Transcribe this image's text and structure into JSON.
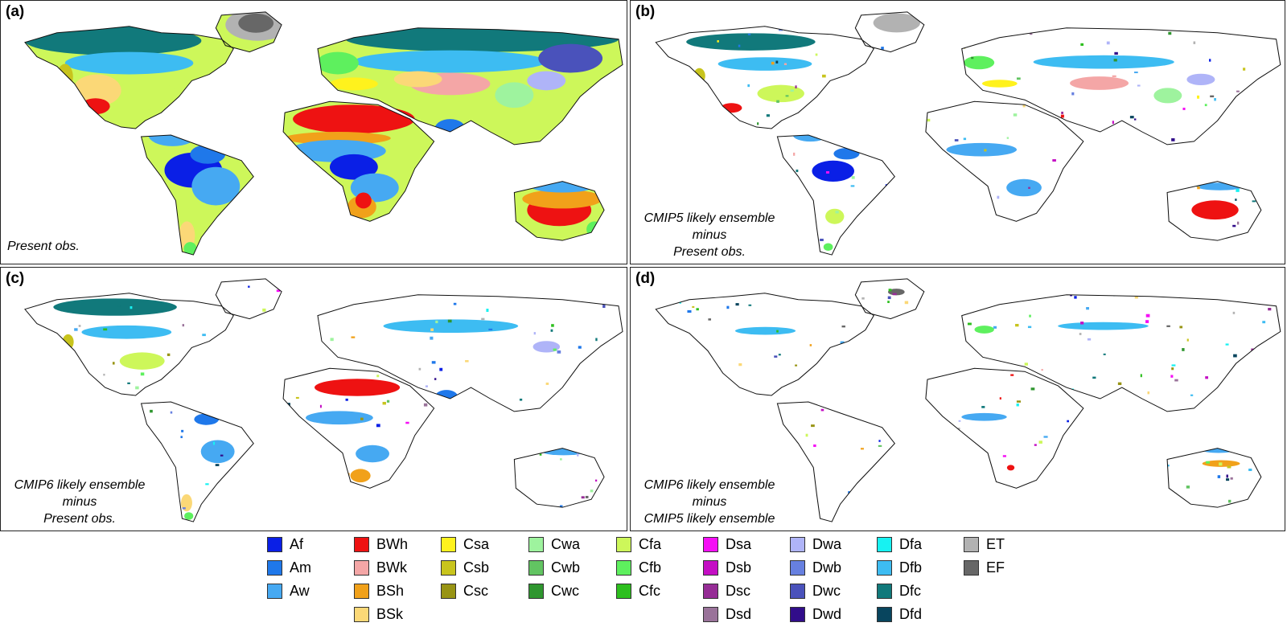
{
  "panels": [
    {
      "id": "a",
      "label": "(a)",
      "caption": [
        "Present obs."
      ],
      "mode": "full"
    },
    {
      "id": "b",
      "label": "(b)",
      "caption": [
        "CMIP5 likely ensemble",
        "minus",
        "Present obs."
      ],
      "mode": "diff"
    },
    {
      "id": "c",
      "label": "(c)",
      "caption": [
        "CMIP6 likely ensemble",
        "minus",
        "Present obs."
      ],
      "mode": "diff"
    },
    {
      "id": "d",
      "label": "(d)",
      "caption": [
        "CMIP6 likely ensemble",
        "minus",
        "CMIP5 likely ensemble"
      ],
      "mode": "sparse"
    }
  ],
  "legend": [
    [
      {
        "code": "Af",
        "color": "#0a1fe6"
      },
      {
        "code": "Am",
        "color": "#1f78ea"
      },
      {
        "code": "Aw",
        "color": "#46a9f2"
      }
    ],
    [
      {
        "code": "BWh",
        "color": "#ee1212"
      },
      {
        "code": "BWk",
        "color": "#f4a6a6"
      },
      {
        "code": "BSh",
        "color": "#f1a11a"
      },
      {
        "code": "BSk",
        "color": "#fbd877"
      }
    ],
    [
      {
        "code": "Csa",
        "color": "#fff21d"
      },
      {
        "code": "Csb",
        "color": "#c8c41d"
      },
      {
        "code": "Csc",
        "color": "#989414"
      }
    ],
    [
      {
        "code": "Cwa",
        "color": "#9ef39e"
      },
      {
        "code": "Cwb",
        "color": "#62c462"
      },
      {
        "code": "Cwc",
        "color": "#2f962f"
      }
    ],
    [
      {
        "code": "Cfa",
        "color": "#cdf75a"
      },
      {
        "code": "Cfb",
        "color": "#5ef05e"
      },
      {
        "code": "Cfc",
        "color": "#2dbf1e"
      }
    ],
    [
      {
        "code": "Dsa",
        "color": "#f50ff5"
      },
      {
        "code": "Dsb",
        "color": "#c40ec4"
      },
      {
        "code": "Dsc",
        "color": "#962d96"
      },
      {
        "code": "Dsd",
        "color": "#9a739a"
      }
    ],
    [
      {
        "code": "Dwa",
        "color": "#afb4f8"
      },
      {
        "code": "Dwb",
        "color": "#6780e0"
      },
      {
        "code": "Dwc",
        "color": "#4a52bb"
      },
      {
        "code": "Dwd",
        "color": "#310d8a"
      }
    ],
    [
      {
        "code": "Dfa",
        "color": "#17f2f2"
      },
      {
        "code": "Dfb",
        "color": "#3dbcf2"
      },
      {
        "code": "Dfc",
        "color": "#11797b"
      },
      {
        "code": "Dfd",
        "color": "#08455e"
      }
    ],
    [
      {
        "code": "ET",
        "color": "#b2b2b2"
      },
      {
        "code": "EF",
        "color": "#676767"
      }
    ]
  ]
}
